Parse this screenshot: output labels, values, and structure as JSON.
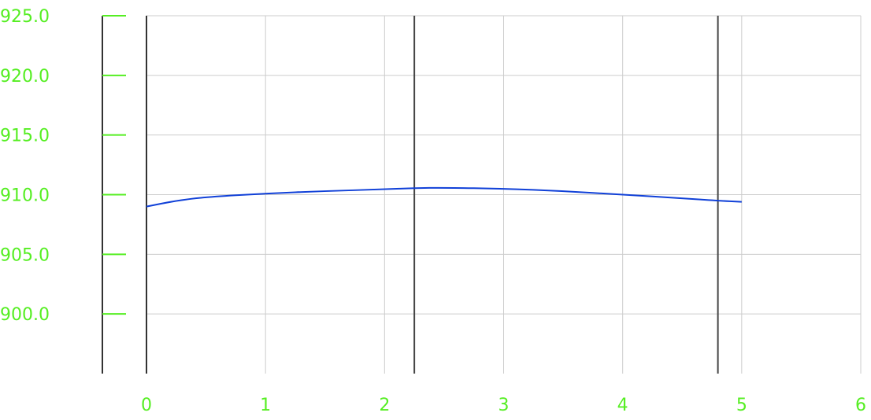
{
  "chart_data": {
    "type": "line",
    "title": "",
    "xlabel": "",
    "ylabel": "",
    "xlim": [
      0,
      6
    ],
    "ylim": [
      895,
      925
    ],
    "x_ticks": [
      {
        "value": 0,
        "label": "0"
      },
      {
        "value": 1,
        "label": "1"
      },
      {
        "value": 2,
        "label": "2"
      },
      {
        "value": 3,
        "label": "3"
      },
      {
        "value": 4,
        "label": "4"
      },
      {
        "value": 5,
        "label": "5"
      },
      {
        "value": 6,
        "label": "6"
      }
    ],
    "y_ticks": [
      {
        "value": 925,
        "label": "925.0"
      },
      {
        "value": 920,
        "label": "920.0"
      },
      {
        "value": 915,
        "label": "915.0"
      },
      {
        "value": 910,
        "label": "910.0"
      },
      {
        "value": 905,
        "label": "905.0"
      },
      {
        "value": 900,
        "label": "900.0"
      }
    ],
    "grid": true,
    "vertical_markers": [
      2.25,
      4.8
    ],
    "series": [
      {
        "color": "#1040d8",
        "points": [
          [
            0.0,
            909.0
          ],
          [
            0.25,
            909.5
          ],
          [
            0.5,
            909.8
          ],
          [
            1.0,
            910.1
          ],
          [
            1.5,
            910.3
          ],
          [
            2.0,
            910.45
          ],
          [
            2.25,
            910.55
          ],
          [
            2.5,
            910.58
          ],
          [
            3.0,
            910.5
          ],
          [
            3.5,
            910.3
          ],
          [
            4.0,
            910.0
          ],
          [
            4.5,
            909.7
          ],
          [
            4.8,
            909.5
          ],
          [
            5.0,
            909.4
          ]
        ]
      }
    ],
    "colors": {
      "tick_label": "#55ee22",
      "grid": "#cccccc",
      "axis": "#333333",
      "marker": "#444444"
    }
  }
}
